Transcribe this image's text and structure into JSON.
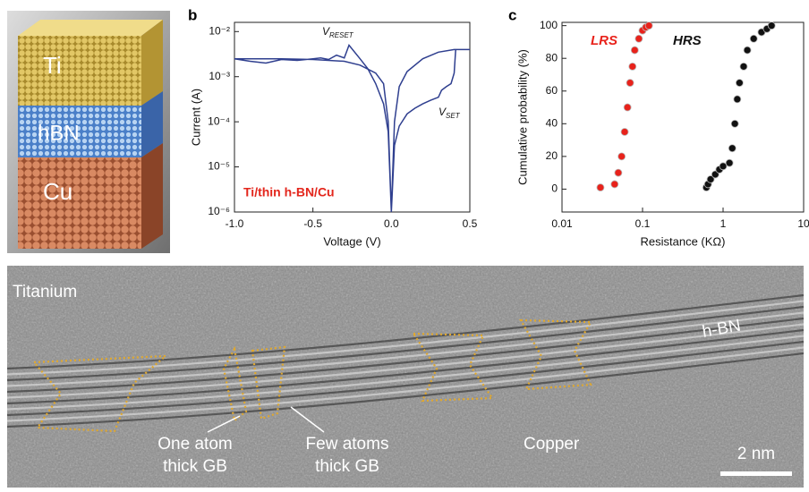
{
  "panel_a": {
    "layers": [
      "Ti",
      "hBN",
      "Cu"
    ]
  },
  "chart_data": [
    {
      "type": "line",
      "panel": "b",
      "xlabel": "Voltage (V)",
      "ylabel": "Current (A)",
      "annotations": [
        {
          "text": "V",
          "subscript": "RESET"
        },
        {
          "text": "V",
          "subscript": "SET"
        }
      ],
      "inset_label": "Ti/thin h-BN/Cu",
      "color": "#2f3f8f",
      "log_y": true,
      "x": [
        -1.0,
        -0.9,
        -0.8,
        -0.7,
        -0.6,
        -0.5,
        -0.45,
        -0.4,
        -0.35,
        -0.3,
        -0.28,
        -0.27,
        -0.2,
        -0.15,
        -0.1,
        -0.05,
        -0.02,
        0,
        0.02,
        0.05,
        0.1,
        0.15,
        0.2,
        0.25,
        0.3,
        0.32,
        0.35,
        0.38,
        0.4,
        0.41,
        0.45,
        0.5,
        0.45,
        0.4,
        0.3,
        0.2,
        0.1,
        0.05,
        0.02,
        0,
        -0.02,
        -0.05,
        -0.1,
        -0.2,
        -0.3,
        -0.5,
        -0.7,
        -1.0
      ],
      "values": [
        0.0025,
        0.0022,
        0.002,
        0.0024,
        0.0023,
        0.0025,
        0.0026,
        0.0024,
        0.003,
        0.0026,
        0.004,
        0.005,
        0.0025,
        0.0015,
        0.0007,
        0.00025,
        6e-05,
        1e-06,
        3e-05,
        8e-05,
        0.00015,
        0.0002,
        0.00025,
        0.0003,
        0.00035,
        0.0005,
        0.0006,
        0.0007,
        0.0012,
        0.004,
        0.004,
        0.004,
        0.004,
        0.004,
        0.0035,
        0.0025,
        0.0013,
        0.0006,
        0.0001,
        1e-06,
        0.0001,
        0.0007,
        0.0012,
        0.0018,
        0.0022,
        0.0024,
        0.0025,
        0.0025
      ],
      "xlim": [
        -1.0,
        0.5
      ],
      "xticks": [
        {
          "value": -1.0,
          "label": "-1.0"
        },
        -0.5,
        {
          "value": 0,
          "label": "0.0"
        },
        0.5
      ],
      "ylim": [
        1e-06,
        0.016
      ],
      "yticks": [
        {
          "value": 1e-06,
          "label": "10⁻⁶"
        },
        {
          "value": 1e-05,
          "label": "10⁻⁵"
        },
        {
          "value": 0.0001,
          "label": "10⁻⁴"
        },
        {
          "value": 0.001,
          "label": "10⁻³"
        },
        {
          "value": 0.01,
          "label": "10⁻²"
        }
      ]
    },
    {
      "type": "scatter",
      "panel": "c",
      "xlabel": "Resistance (KΩ)",
      "ylabel": "Cumulative probability (%)",
      "log_x": true,
      "series": [
        {
          "name": "LRS",
          "color": "#e8221b",
          "x": [
            0.03,
            0.045,
            0.05,
            0.055,
            0.06,
            0.065,
            0.07,
            0.075,
            0.08,
            0.09,
            0.1,
            0.11,
            0.12
          ],
          "values": [
            1,
            3,
            10,
            20,
            35,
            50,
            65,
            75,
            85,
            92,
            97,
            99,
            100
          ]
        },
        {
          "name": "HRS",
          "color": "#111111",
          "x": [
            0.62,
            0.65,
            0.7,
            0.8,
            0.9,
            1.0,
            1.2,
            1.3,
            1.4,
            1.5,
            1.6,
            1.8,
            2.0,
            2.4,
            3.0,
            3.5,
            4.0
          ],
          "values": [
            1,
            3,
            6,
            9,
            12,
            14,
            16,
            25,
            40,
            55,
            65,
            75,
            85,
            92,
            96,
            98,
            100
          ]
        }
      ],
      "xlim": [
        0.01,
        10
      ],
      "xticks": [
        0.01,
        0.1,
        1,
        10
      ],
      "ylim": [
        -14,
        102
      ],
      "yticks": [
        0,
        20,
        40,
        60,
        80,
        100
      ]
    }
  ],
  "tem_image": {
    "top_material": "Titanium",
    "layer": "h-BN",
    "bottom_material": "Copper",
    "gb_one": [
      "One atom",
      "thick GB"
    ],
    "gb_few": [
      "Few atoms",
      "thick GB"
    ],
    "scale_bar": "2 nm"
  }
}
